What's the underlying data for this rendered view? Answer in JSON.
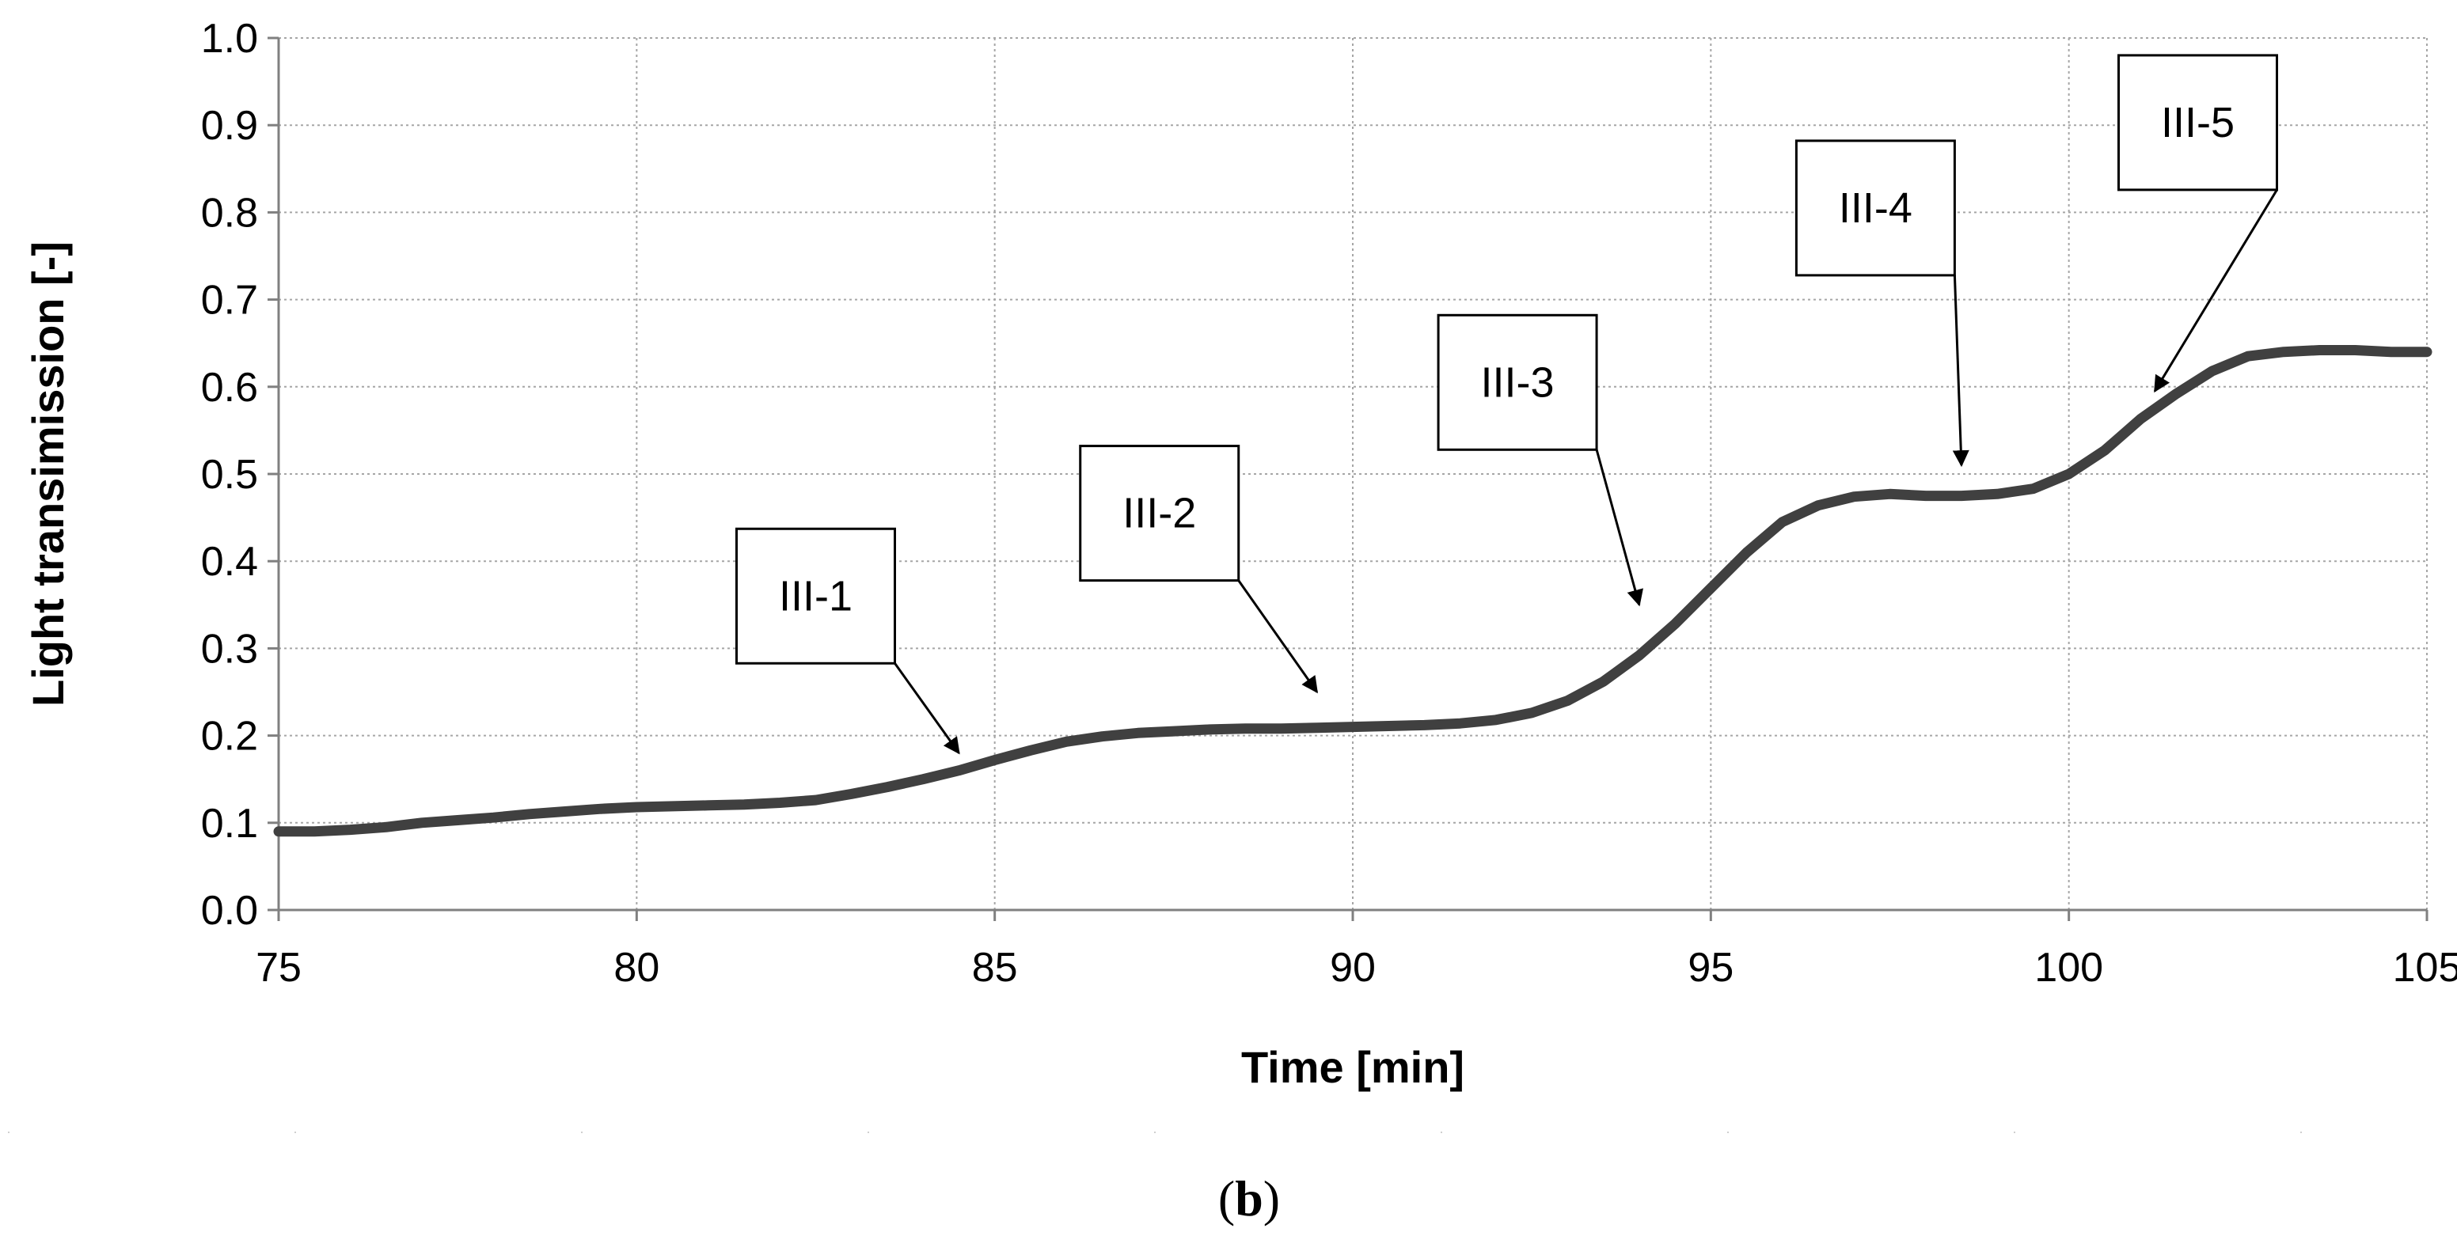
{
  "chart_data": {
    "type": "line",
    "xlabel": "Time [min]",
    "ylabel": "Light transimission [-]",
    "xlim": [
      75,
      105
    ],
    "ylim": [
      0.0,
      1.0
    ],
    "xticks": [
      75,
      80,
      85,
      90,
      95,
      100,
      105
    ],
    "yticks": [
      0.0,
      0.1,
      0.2,
      0.3,
      0.4,
      0.5,
      0.6,
      0.7,
      0.8,
      0.9,
      1.0
    ],
    "xtick_labels": [
      "75",
      "80",
      "85",
      "90",
      "95",
      "100",
      "105"
    ],
    "ytick_labels": [
      "0.0",
      "0.1",
      "0.2",
      "0.3",
      "0.4",
      "0.5",
      "0.6",
      "0.7",
      "0.8",
      "0.9",
      "1.0"
    ],
    "grid": true,
    "series": [
      {
        "name": "Light transimission",
        "color": "#404040",
        "x": [
          75,
          75.5,
          76,
          76.5,
          77,
          77.5,
          78,
          78.5,
          79,
          79.5,
          80,
          80.5,
          81,
          81.5,
          82,
          82.5,
          83,
          83.5,
          84,
          84.5,
          85,
          85.5,
          86,
          86.5,
          87,
          87.5,
          88,
          88.5,
          89,
          89.5,
          90,
          90.5,
          91,
          91.5,
          92,
          92.5,
          93,
          93.5,
          94,
          94.5,
          95,
          95.5,
          96,
          96.5,
          97,
          97.5,
          98,
          98.5,
          99,
          99.5,
          100,
          100.5,
          101,
          101.5,
          102,
          102.5,
          103,
          103.5,
          104,
          104.5,
          105
        ],
        "y": [
          0.09,
          0.09,
          0.092,
          0.095,
          0.1,
          0.103,
          0.106,
          0.11,
          0.113,
          0.116,
          0.118,
          0.119,
          0.12,
          0.121,
          0.123,
          0.126,
          0.133,
          0.141,
          0.15,
          0.16,
          0.172,
          0.183,
          0.193,
          0.199,
          0.203,
          0.205,
          0.207,
          0.208,
          0.208,
          0.209,
          0.21,
          0.211,
          0.212,
          0.214,
          0.218,
          0.226,
          0.24,
          0.262,
          0.292,
          0.328,
          0.369,
          0.41,
          0.445,
          0.464,
          0.474,
          0.477,
          0.475,
          0.475,
          0.477,
          0.483,
          0.5,
          0.527,
          0.563,
          0.592,
          0.618,
          0.635,
          0.64,
          0.642,
          0.642,
          0.64,
          0.64
        ]
      }
    ],
    "annotations": [
      {
        "text": "III-1",
        "box_x": 82.5,
        "box_y": 0.36,
        "arrow_to_x": 84.5,
        "arrow_to_y": 0.18
      },
      {
        "text": "III-2",
        "box_x": 87.3,
        "box_y": 0.455,
        "arrow_to_x": 89.5,
        "arrow_to_y": 0.25
      },
      {
        "text": "III-3",
        "box_x": 92.3,
        "box_y": 0.605,
        "arrow_to_x": 94.0,
        "arrow_to_y": 0.35
      },
      {
        "text": "III-4",
        "box_x": 97.3,
        "box_y": 0.805,
        "arrow_to_x": 98.5,
        "arrow_to_y": 0.51
      },
      {
        "text": "III-5",
        "box_x": 101.8,
        "box_y": 0.903,
        "arrow_to_x": 101.2,
        "arrow_to_y": 0.595
      }
    ]
  },
  "caption": {
    "open": "(",
    "letter": "b",
    "close": ")"
  }
}
